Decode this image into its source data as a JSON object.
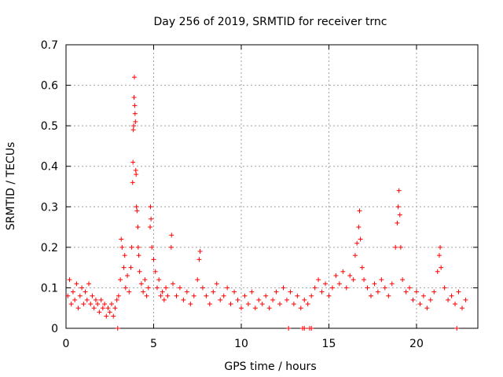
{
  "chart_data": {
    "type": "scatter",
    "title": "Day 256 of 2019, SRMTID for receiver trnc",
    "xlabel": "GPS time / hours",
    "ylabel": "SRMTID / TECUs",
    "xlim": [
      0,
      23.5
    ],
    "ylim": [
      0,
      0.7
    ],
    "grid": true,
    "marker": "+",
    "color": "#ff0000",
    "x_ticks": [
      0,
      5,
      10,
      15,
      20
    ],
    "y_ticks": [
      0,
      0.1,
      0.2,
      0.3,
      0.4,
      0.5,
      0.6,
      0.7
    ],
    "x_tick_labels": [
      "0",
      "5",
      "10",
      "15",
      "20"
    ],
    "y_tick_labels": [
      "0",
      "0.1",
      "0.2",
      "0.3",
      "0.4",
      "0.5",
      "0.6",
      "0.7"
    ],
    "series": [
      {
        "name": "SRMTID",
        "points": [
          [
            0.1,
            0.08
          ],
          [
            0.2,
            0.12
          ],
          [
            0.3,
            0.06
          ],
          [
            0.4,
            0.09
          ],
          [
            0.5,
            0.07
          ],
          [
            0.6,
            0.11
          ],
          [
            0.7,
            0.05
          ],
          [
            0.8,
            0.08
          ],
          [
            0.9,
            0.1
          ],
          [
            1.0,
            0.06
          ],
          [
            1.1,
            0.09
          ],
          [
            1.2,
            0.07
          ],
          [
            1.3,
            0.11
          ],
          [
            1.4,
            0.06
          ],
          [
            1.5,
            0.08
          ],
          [
            1.6,
            0.05
          ],
          [
            1.7,
            0.07
          ],
          [
            1.8,
            0.06
          ],
          [
            1.9,
            0.04
          ],
          [
            2.0,
            0.07
          ],
          [
            2.1,
            0.05
          ],
          [
            2.2,
            0.06
          ],
          [
            2.3,
            0.03
          ],
          [
            2.4,
            0.05
          ],
          [
            2.5,
            0.04
          ],
          [
            2.6,
            0.06
          ],
          [
            2.7,
            0.03
          ],
          [
            2.8,
            0.05
          ],
          [
            2.9,
            0.07
          ],
          [
            3.0,
            0.08
          ],
          [
            3.1,
            0.12
          ],
          [
            3.15,
            0.22
          ],
          [
            3.2,
            0.2
          ],
          [
            3.3,
            0.15
          ],
          [
            3.35,
            0.18
          ],
          [
            3.4,
            0.1
          ],
          [
            3.5,
            0.13
          ],
          [
            3.6,
            0.09
          ],
          [
            3.7,
            0.15
          ],
          [
            3.75,
            0.2
          ],
          [
            3.8,
            0.36
          ],
          [
            3.82,
            0.41
          ],
          [
            3.84,
            0.49
          ],
          [
            3.86,
            0.5
          ],
          [
            3.88,
            0.57
          ],
          [
            3.9,
            0.62
          ],
          [
            3.92,
            0.55
          ],
          [
            3.94,
            0.53
          ],
          [
            3.96,
            0.51
          ],
          [
            3.98,
            0.39
          ],
          [
            4.0,
            0.38
          ],
          [
            4.02,
            0.3
          ],
          [
            4.05,
            0.29
          ],
          [
            4.1,
            0.25
          ],
          [
            4.12,
            0.2
          ],
          [
            4.15,
            0.18
          ],
          [
            4.2,
            0.14
          ],
          [
            4.3,
            0.11
          ],
          [
            4.4,
            0.09
          ],
          [
            4.5,
            0.12
          ],
          [
            4.6,
            0.08
          ],
          [
            4.7,
            0.1
          ],
          [
            4.8,
            0.25
          ],
          [
            4.82,
            0.3
          ],
          [
            4.85,
            0.27
          ],
          [
            4.9,
            0.2
          ],
          [
            5.0,
            0.17
          ],
          [
            5.1,
            0.14
          ],
          [
            5.2,
            0.1
          ],
          [
            5.3,
            0.12
          ],
          [
            5.4,
            0.08
          ],
          [
            5.5,
            0.09
          ],
          [
            5.6,
            0.07
          ],
          [
            5.7,
            0.1
          ],
          [
            5.8,
            0.08
          ],
          [
            6.0,
            0.2
          ],
          [
            6.02,
            0.23
          ],
          [
            6.1,
            0.11
          ],
          [
            6.3,
            0.08
          ],
          [
            6.5,
            0.1
          ],
          [
            6.7,
            0.07
          ],
          [
            6.9,
            0.09
          ],
          [
            7.1,
            0.06
          ],
          [
            7.3,
            0.08
          ],
          [
            7.5,
            0.12
          ],
          [
            7.6,
            0.17
          ],
          [
            7.65,
            0.19
          ],
          [
            7.8,
            0.1
          ],
          [
            8.0,
            0.08
          ],
          [
            8.2,
            0.06
          ],
          [
            8.4,
            0.09
          ],
          [
            8.6,
            0.11
          ],
          [
            8.8,
            0.07
          ],
          [
            9.0,
            0.08
          ],
          [
            9.2,
            0.1
          ],
          [
            9.4,
            0.06
          ],
          [
            9.6,
            0.09
          ],
          [
            9.8,
            0.07
          ],
          [
            10.0,
            0.05
          ],
          [
            10.2,
            0.08
          ],
          [
            10.4,
            0.06
          ],
          [
            10.6,
            0.09
          ],
          [
            10.8,
            0.05
          ],
          [
            11.0,
            0.07
          ],
          [
            11.2,
            0.06
          ],
          [
            11.4,
            0.08
          ],
          [
            11.6,
            0.05
          ],
          [
            11.8,
            0.07
          ],
          [
            12.0,
            0.09
          ],
          [
            12.2,
            0.06
          ],
          [
            12.4,
            0.1
          ],
          [
            12.6,
            0.07
          ],
          [
            12.8,
            0.09
          ],
          [
            13.0,
            0.06
          ],
          [
            13.2,
            0.08
          ],
          [
            13.4,
            0.05
          ],
          [
            13.6,
            0.07
          ],
          [
            13.8,
            0.06
          ],
          [
            14.0,
            0.08
          ],
          [
            14.2,
            0.1
          ],
          [
            14.4,
            0.12
          ],
          [
            14.6,
            0.09
          ],
          [
            14.8,
            0.11
          ],
          [
            15.0,
            0.08
          ],
          [
            15.2,
            0.1
          ],
          [
            15.4,
            0.13
          ],
          [
            15.6,
            0.11
          ],
          [
            15.8,
            0.14
          ],
          [
            16.0,
            0.1
          ],
          [
            16.2,
            0.13
          ],
          [
            16.4,
            0.12
          ],
          [
            16.5,
            0.18
          ],
          [
            16.6,
            0.21
          ],
          [
            16.7,
            0.25
          ],
          [
            16.75,
            0.29
          ],
          [
            16.8,
            0.22
          ],
          [
            16.9,
            0.15
          ],
          [
            17.0,
            0.12
          ],
          [
            17.2,
            0.1
          ],
          [
            17.4,
            0.08
          ],
          [
            17.6,
            0.11
          ],
          [
            17.8,
            0.09
          ],
          [
            18.0,
            0.12
          ],
          [
            18.2,
            0.1
          ],
          [
            18.4,
            0.08
          ],
          [
            18.6,
            0.11
          ],
          [
            18.8,
            0.2
          ],
          [
            18.9,
            0.26
          ],
          [
            18.95,
            0.3
          ],
          [
            19.0,
            0.34
          ],
          [
            19.05,
            0.28
          ],
          [
            19.1,
            0.2
          ],
          [
            19.2,
            0.12
          ],
          [
            19.4,
            0.09
          ],
          [
            19.6,
            0.1
          ],
          [
            19.8,
            0.07
          ],
          [
            20.0,
            0.09
          ],
          [
            20.2,
            0.06
          ],
          [
            20.4,
            0.08
          ],
          [
            20.6,
            0.05
          ],
          [
            20.8,
            0.07
          ],
          [
            21.0,
            0.09
          ],
          [
            21.2,
            0.14
          ],
          [
            21.3,
            0.18
          ],
          [
            21.35,
            0.2
          ],
          [
            21.4,
            0.15
          ],
          [
            21.6,
            0.1
          ],
          [
            21.8,
            0.07
          ],
          [
            22.0,
            0.08
          ],
          [
            22.2,
            0.06
          ],
          [
            22.4,
            0.09
          ],
          [
            22.6,
            0.05
          ],
          [
            22.8,
            0.07
          ],
          [
            2.95,
            0.0
          ],
          [
            12.7,
            0.0
          ],
          [
            13.5,
            0.0
          ],
          [
            13.6,
            0.0
          ],
          [
            13.9,
            0.0
          ],
          [
            14.0,
            0.0
          ],
          [
            22.3,
            0.0
          ]
        ]
      }
    ]
  }
}
